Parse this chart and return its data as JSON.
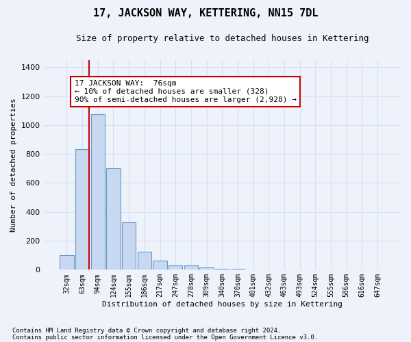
{
  "title": "17, JACKSON WAY, KETTERING, NN15 7DL",
  "subtitle": "Size of property relative to detached houses in Kettering",
  "xlabel": "Distribution of detached houses by size in Kettering",
  "ylabel": "Number of detached properties",
  "bar_labels": [
    "32sqm",
    "63sqm",
    "94sqm",
    "124sqm",
    "155sqm",
    "186sqm",
    "217sqm",
    "247sqm",
    "278sqm",
    "309sqm",
    "340sqm",
    "370sqm",
    "401sqm",
    "432sqm",
    "463sqm",
    "493sqm",
    "524sqm",
    "555sqm",
    "586sqm",
    "616sqm",
    "647sqm"
  ],
  "bar_values": [
    100,
    835,
    1075,
    700,
    330,
    125,
    65,
    32,
    28,
    18,
    8,
    5,
    3,
    2,
    2,
    2,
    0,
    0,
    0,
    0,
    0
  ],
  "bar_color": "#c8d8f0",
  "bar_edge_color": "#6699cc",
  "property_line_bin": 1.43,
  "annotation_text": "17 JACKSON WAY:  76sqm\n← 10% of detached houses are smaller (328)\n90% of semi-detached houses are larger (2,928) →",
  "annotation_box_color": "#ffffff",
  "annotation_box_edgecolor": "#cc0000",
  "vline_color": "#cc0000",
  "ylim": [
    0,
    1450
  ],
  "yticks": [
    0,
    200,
    400,
    600,
    800,
    1000,
    1200,
    1400
  ],
  "footnote1": "Contains HM Land Registry data © Crown copyright and database right 2024.",
  "footnote2": "Contains public sector information licensed under the Open Government Licence v3.0.",
  "background_color": "#eef2fb",
  "grid_color": "#d8dff0"
}
